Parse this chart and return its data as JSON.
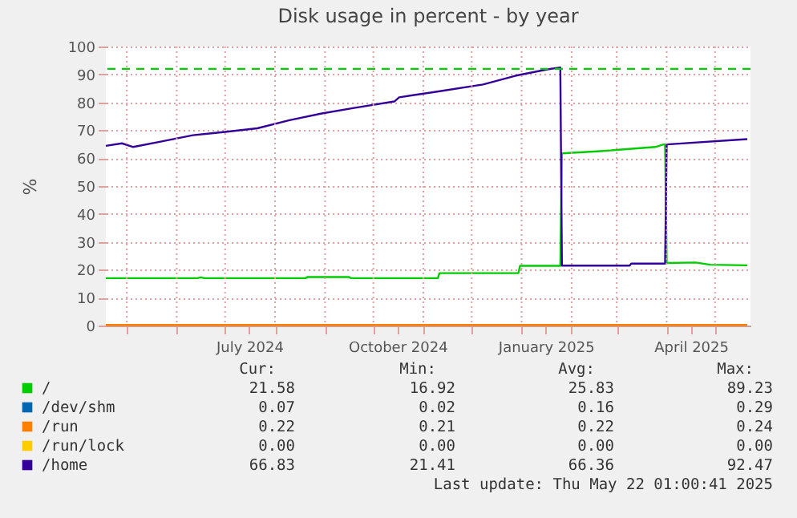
{
  "chart_data": {
    "type": "line",
    "title": "Disk usage in percent - by year",
    "ylabel": "%",
    "xlim": [
      "2024-04-18",
      "2025-05-23"
    ],
    "xticks": [
      {
        "value": "2024-05-01",
        "label": null
      },
      {
        "value": "2024-06-01",
        "label": null
      },
      {
        "value": "2024-07-01",
        "label": null
      },
      {
        "value": "2024-07-16",
        "label": "July 2024"
      },
      {
        "value": "2024-08-01",
        "label": null
      },
      {
        "value": "2024-09-01",
        "label": null
      },
      {
        "value": "2024-10-01",
        "label": null
      },
      {
        "value": "2024-10-16",
        "label": "October 2024"
      },
      {
        "value": "2024-11-01",
        "label": null
      },
      {
        "value": "2024-12-01",
        "label": null
      },
      {
        "value": "2025-01-01",
        "label": null
      },
      {
        "value": "2025-01-16",
        "label": "January 2025"
      },
      {
        "value": "2025-02-01",
        "label": null
      },
      {
        "value": "2025-03-01",
        "label": null
      },
      {
        "value": "2025-04-01",
        "label": null
      },
      {
        "value": "2025-04-16",
        "label": "April 2025"
      },
      {
        "value": "2025-05-01",
        "label": null
      }
    ],
    "ylim": [
      0,
      100
    ],
    "yticks": [
      0,
      10,
      20,
      30,
      40,
      50,
      60,
      70,
      80,
      90,
      100
    ],
    "grid": true,
    "legend": "bottom",
    "line_style": "solid",
    "marker": "none",
    "series": [
      {
        "name": "/",
        "color": "#00cc00",
        "x": [
          "2024-04-18",
          "2024-06-14",
          "2024-06-16",
          "2024-06-18",
          "2024-08-20",
          "2024-08-21",
          "2024-09-16",
          "2024-09-17",
          "2024-11-10",
          "2024-11-11",
          "2024-12-30",
          "2024-12-31",
          "2025-01-25",
          "2025-01-26",
          "2025-02-19",
          "2025-03-25",
          "2025-03-30",
          "2025-03-31",
          "2025-04-01",
          "2025-04-19",
          "2025-04-28",
          "2025-05-21"
        ],
        "values": [
          17.0,
          17.0,
          17.3,
          17.0,
          17.0,
          17.4,
          17.4,
          17.0,
          17.0,
          18.8,
          18.8,
          21.4,
          21.4,
          61.7,
          62.5,
          64.0,
          64.9,
          64.9,
          22.4,
          22.6,
          21.8,
          21.6
        ]
      },
      {
        "name": "/dev/shm",
        "color": "#0066b3"
      },
      {
        "name": "/run",
        "color": "#ff8000",
        "x": [
          "2024-04-18",
          "2024-10-01",
          "2025-05-21"
        ],
        "values": [
          0.2,
          0.2,
          0.2
        ]
      },
      {
        "name": "/run/lock",
        "color": "#ffcc00"
      },
      {
        "name": "/home",
        "color": "#330099",
        "x": [
          "2024-04-18",
          "2024-04-28",
          "2024-05-05",
          "2024-05-22",
          "2024-06-11",
          "2024-07-01",
          "2024-07-21",
          "2024-08-10",
          "2024-08-30",
          "2024-09-19",
          "2024-10-14",
          "2024-10-17",
          "2024-11-08",
          "2024-12-08",
          "2024-12-28",
          "2025-01-17",
          "2025-01-25",
          "2025-01-26",
          "2025-03-09",
          "2025-03-10",
          "2025-03-31",
          "2025-04-01",
          "2025-05-21"
        ],
        "values": [
          64.4,
          65.3,
          64.0,
          65.9,
          68.2,
          69.4,
          70.7,
          73.6,
          76.0,
          78.0,
          80.3,
          81.8,
          83.7,
          86.4,
          89.5,
          91.8,
          92.5,
          21.5,
          21.5,
          22.2,
          22.2,
          64.9,
          66.8
        ]
      }
    ],
    "ref_lines": [
      {
        "axis": "y",
        "value": 92,
        "color": "#00cc00",
        "line_style": "dashed"
      }
    ],
    "annotations": [
      "Cur:",
      "Min:",
      "Avg:",
      "Max:",
      "21.58",
      "16.92",
      "25.83",
      "89.23",
      "0.07",
      "0.02",
      "0.16",
      "0.29",
      "0.22",
      "0.21",
      "0.22",
      "0.24",
      "0.00",
      "0.00",
      "0.00",
      "0.00",
      "66.83",
      "21.41",
      "66.36",
      "92.47",
      "Last update: Thu May 22 01:00:41 2025"
    ]
  }
}
